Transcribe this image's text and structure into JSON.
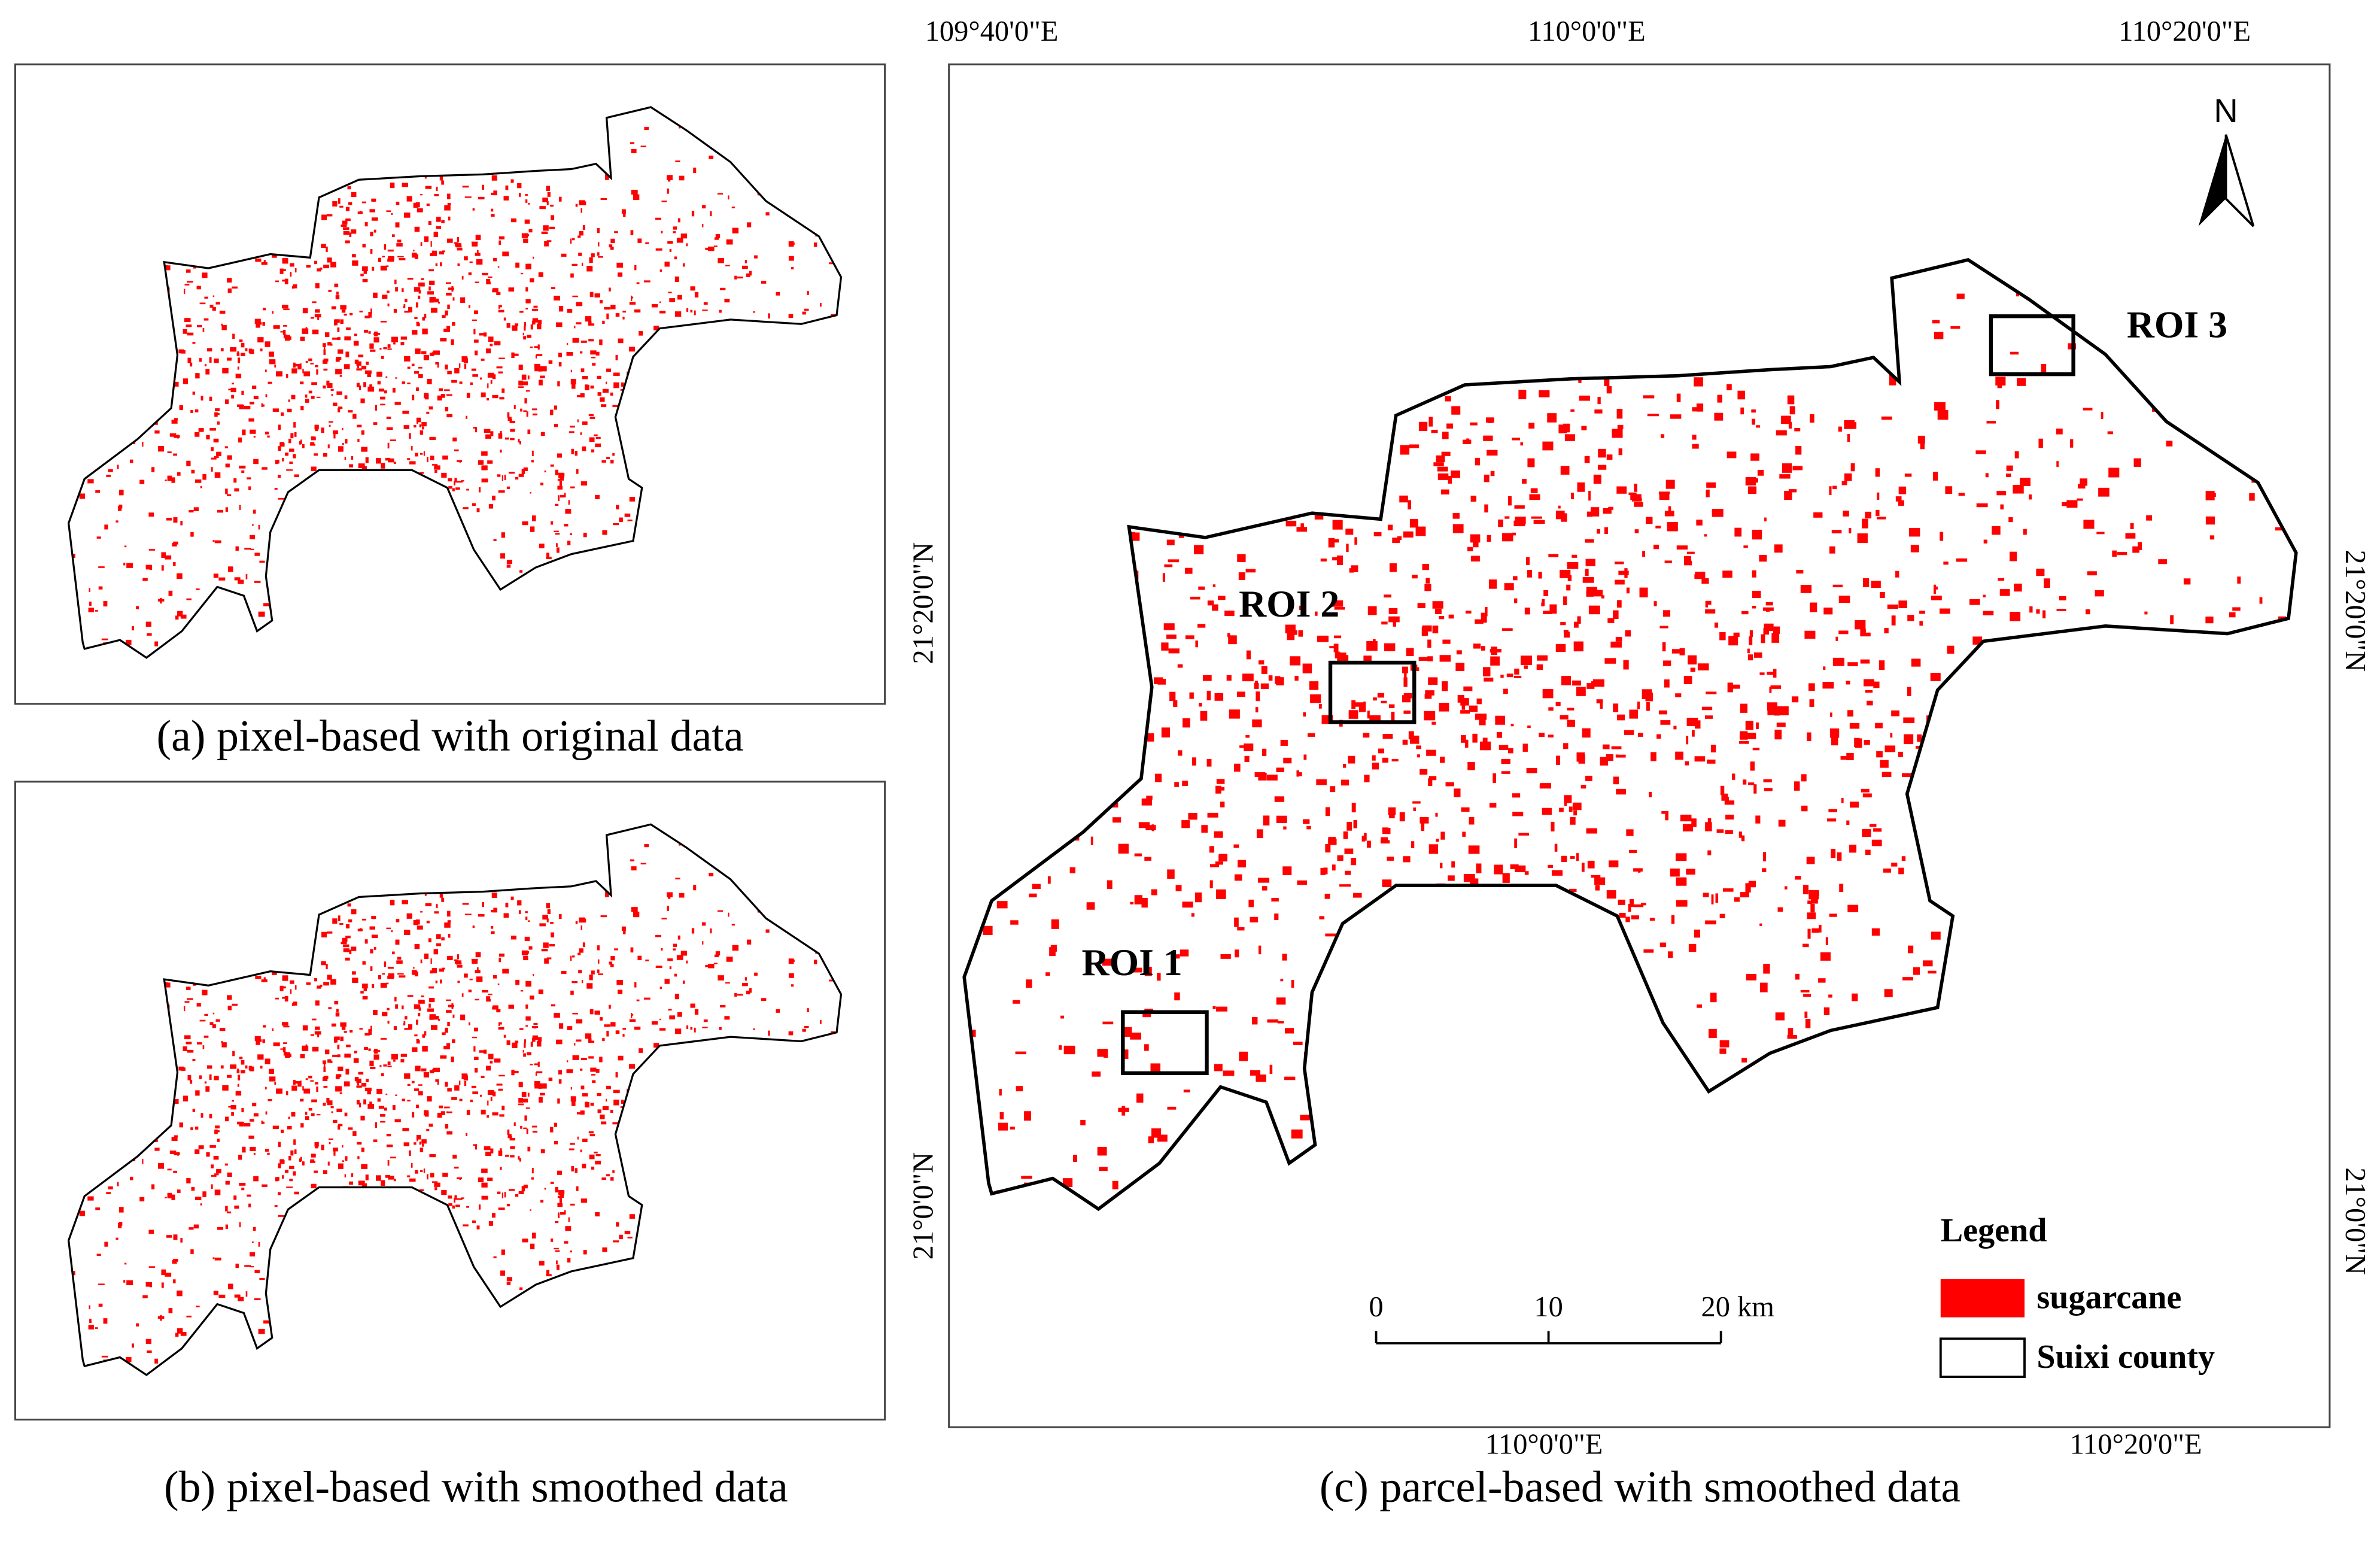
{
  "panels": [
    {
      "caption": "(a) pixel-based with original data"
    },
    {
      "caption": "(b) pixel-based with smoothed data"
    },
    {
      "caption": "(c) parcel-based with smoothed data"
    }
  ],
  "map_c": {
    "top_labels": [
      "109°40'0\"E",
      "110°0'0\"E",
      "110°20'0\"E"
    ],
    "bottom_labels": [
      "110°0'0\"E",
      "110°20'0\"E"
    ],
    "left_labels": [
      "21°20'0\"N",
      "21°0'0\"N"
    ],
    "right_labels": [
      "21°20'0\"N",
      "21°0'0\"N"
    ],
    "north": "N",
    "rois": [
      "ROI 1",
      "ROI 2",
      "ROI 3"
    ],
    "scale_labels": [
      "0",
      "10",
      "20 km"
    ],
    "legend": {
      "title": "Legend",
      "items": [
        "sugarcane",
        "Suixi county"
      ]
    }
  }
}
